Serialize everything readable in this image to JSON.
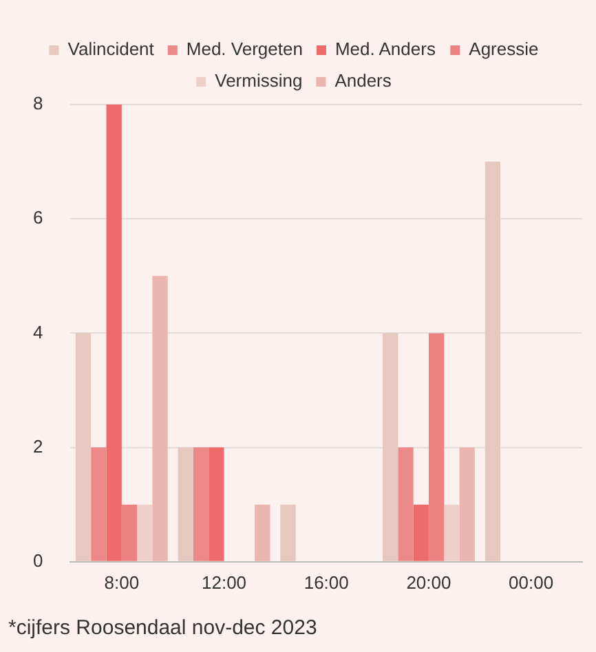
{
  "chart_data": {
    "type": "bar",
    "categories": [
      "8:00",
      "12:00",
      "16:00",
      "20:00",
      "00:00"
    ],
    "series": [
      {
        "name": "Valincident",
        "color": "#e6c8bf",
        "values": [
          4,
          2,
          1,
          4,
          7
        ]
      },
      {
        "name": "Med. Vergeten",
        "color": "#ec8888",
        "values": [
          2,
          2,
          0,
          2,
          0
        ]
      },
      {
        "name": "Med. Anders",
        "color": "#ee6b6b",
        "values": [
          8,
          2,
          0,
          1,
          0
        ]
      },
      {
        "name": "Agressie",
        "color": "#ec8282",
        "values": [
          1,
          0,
          0,
          4,
          0
        ]
      },
      {
        "name": "Vermissing",
        "color": "#efd0c8",
        "values": [
          1,
          0,
          0,
          1,
          0
        ]
      },
      {
        "name": "Anders",
        "color": "#ebb5b0",
        "values": [
          5,
          1,
          0,
          2,
          0
        ]
      }
    ],
    "ylim": [
      0,
      8
    ],
    "yticks": [
      0,
      2,
      4,
      6,
      8
    ],
    "grid": "y",
    "legend": "top",
    "annotations": [
      "*cijfers Roosendaal nov-dec 2023"
    ]
  }
}
